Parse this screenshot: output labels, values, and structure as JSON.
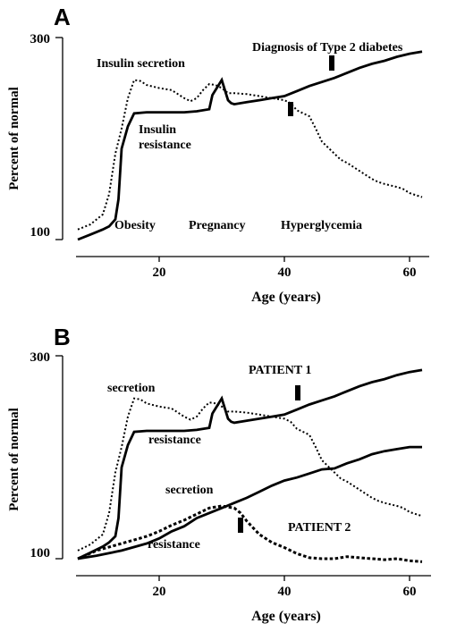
{
  "chart_data": [
    {
      "panel": "A",
      "type": "line",
      "xlabel": "Age (years)",
      "ylabel": "Percent of normal",
      "xlim": [
        7,
        63
      ],
      "ylim": [
        100,
        300
      ],
      "xticks": [
        20,
        40,
        60
      ],
      "yticks": [
        100,
        300
      ],
      "grid": false,
      "series": [
        {
          "name": "Insulin secretion",
          "style": "dotted",
          "x": [
            7,
            9,
            11,
            12,
            13,
            14,
            15,
            16,
            17,
            18,
            20,
            22,
            24,
            25,
            26,
            27,
            28,
            29,
            30,
            31,
            32,
            34,
            36,
            38,
            40,
            41,
            42,
            44,
            45,
            46,
            48,
            49,
            50,
            52,
            54,
            55,
            56,
            58,
            59,
            60,
            61,
            62
          ],
          "y": [
            110,
            115,
            125,
            145,
            185,
            210,
            240,
            258,
            257,
            253,
            250,
            248,
            240,
            237,
            240,
            248,
            254,
            253,
            250,
            245,
            245,
            244,
            242,
            240,
            238,
            235,
            228,
            222,
            210,
            197,
            185,
            179,
            176,
            168,
            160,
            157,
            155,
            152,
            150,
            146,
            144,
            142
          ]
        },
        {
          "name": "Insulin resistance",
          "style": "solid",
          "x": [
            7,
            9,
            11,
            12,
            13,
            13.5,
            14,
            15,
            16,
            18,
            20,
            22,
            24,
            26,
            28,
            28.5,
            29,
            30,
            31,
            31.5,
            32,
            34,
            36,
            38,
            40,
            42,
            44,
            46,
            48,
            50,
            52,
            54,
            56,
            58,
            60,
            62
          ],
          "y": [
            100,
            105,
            110,
            113,
            120,
            140,
            190,
            212,
            225,
            226,
            226,
            226,
            226,
            227,
            229,
            243,
            248,
            258,
            238,
            235,
            234,
            236,
            238,
            240,
            242,
            247,
            252,
            256,
            260,
            265,
            270,
            274,
            277,
            281,
            284,
            286
          ]
        }
      ],
      "annotations": [
        "Insulin secretion",
        "Insulin resistance",
        "Obesity",
        "Pregnancy",
        "Hyperglycemia",
        "Diagnosis of Type 2 diabetes"
      ]
    },
    {
      "panel": "B",
      "type": "line",
      "xlabel": "Age (years)",
      "ylabel": "Percent of normal",
      "xlim": [
        7,
        63
      ],
      "ylim": [
        100,
        300
      ],
      "xticks": [
        20,
        40,
        60
      ],
      "yticks": [
        100,
        300
      ],
      "grid": false,
      "series": [
        {
          "name": "secretion",
          "group": "PATIENT 1",
          "style": "dotted",
          "x": [
            7,
            9,
            11,
            12,
            13,
            14,
            15,
            16,
            17,
            18,
            20,
            22,
            24,
            25,
            26,
            27,
            28,
            29,
            30,
            31,
            32,
            34,
            36,
            38,
            40,
            41,
            42,
            44,
            45,
            46,
            48,
            49,
            50,
            52,
            54,
            55,
            56,
            58,
            59,
            60,
            61,
            62
          ],
          "y": [
            108,
            114,
            124,
            145,
            185,
            210,
            240,
            258,
            257,
            253,
            250,
            248,
            240,
            237,
            240,
            248,
            254,
            253,
            250,
            245,
            245,
            244,
            242,
            240,
            238,
            235,
            228,
            222,
            210,
            197,
            185,
            179,
            176,
            168,
            160,
            157,
            155,
            152,
            150,
            146,
            144,
            142
          ]
        },
        {
          "name": "resistance",
          "group": "PATIENT 1",
          "style": "solid",
          "x": [
            7,
            9,
            11,
            12,
            13,
            13.5,
            14,
            15,
            16,
            18,
            20,
            22,
            24,
            26,
            28,
            28.5,
            29,
            30,
            31,
            31.5,
            32,
            34,
            36,
            38,
            40,
            42,
            44,
            46,
            48,
            50,
            52,
            54,
            56,
            58,
            60,
            62
          ],
          "y": [
            100,
            106,
            112,
            116,
            122,
            140,
            190,
            212,
            225,
            226,
            226,
            226,
            226,
            227,
            229,
            243,
            248,
            258,
            238,
            235,
            234,
            236,
            238,
            240,
            242,
            247,
            252,
            256,
            260,
            265,
            270,
            274,
            277,
            281,
            284,
            286
          ]
        },
        {
          "name": "secretion",
          "group": "PATIENT 2",
          "style": "dotted",
          "x": [
            7,
            10,
            14,
            18,
            20,
            22,
            24,
            26,
            28,
            30,
            32,
            33,
            34,
            36,
            38,
            40,
            42,
            44,
            46,
            48,
            50,
            52,
            54,
            56,
            58,
            60,
            62
          ],
          "y": [
            100,
            108,
            115,
            122,
            127,
            133,
            138,
            144,
            150,
            152,
            150,
            145,
            137,
            124,
            116,
            111,
            105,
            101,
            100,
            100,
            102,
            101,
            100,
            99,
            100,
            98,
            97
          ]
        },
        {
          "name": "resistance",
          "group": "PATIENT 2",
          "style": "solid",
          "x": [
            7,
            10,
            14,
            18,
            20,
            22,
            24,
            26,
            28,
            30,
            32,
            34,
            36,
            38,
            40,
            42,
            44,
            46,
            48,
            50,
            52,
            54,
            56,
            58,
            60,
            62
          ],
          "y": [
            100,
            103,
            108,
            115,
            120,
            127,
            132,
            140,
            145,
            150,
            155,
            160,
            166,
            172,
            177,
            180,
            184,
            188,
            189,
            194,
            198,
            203,
            206,
            208,
            210,
            210
          ]
        }
      ],
      "annotations": [
        "secretion",
        "resistance",
        "PATIENT 1",
        "secretion",
        "resistance",
        "PATIENT 2"
      ]
    }
  ],
  "panelA": {
    "letter": "A",
    "ylabel": "Percent of normal",
    "xlabel": "Age (years)",
    "ytick_top": "300",
    "ytick_bottom": "100",
    "xtick_1": "20",
    "xtick_2": "40",
    "xtick_3": "60",
    "label_secretion": "Insulin secretion",
    "label_resistance_1": "Insulin",
    "label_resistance_2": "resistance",
    "label_obesity": "Obesity",
    "label_pregnancy": "Pregnancy",
    "label_hyperglycemia": "Hyperglycemia",
    "label_diagnosis": "Diagnosis of Type 2 diabetes"
  },
  "panelB": {
    "letter": "B",
    "ylabel": "Percent of normal",
    "xlabel": "Age (years)",
    "ytick_top": "300",
    "ytick_bottom": "100",
    "xtick_1": "20",
    "xtick_2": "40",
    "xtick_3": "60",
    "label_p1_secretion": "secretion",
    "label_p1_resistance": "resistance",
    "label_patient1": "PATIENT 1",
    "label_p2_secretion": "secretion",
    "label_p2_resistance": "resistance",
    "label_patient2": "PATIENT 2"
  }
}
